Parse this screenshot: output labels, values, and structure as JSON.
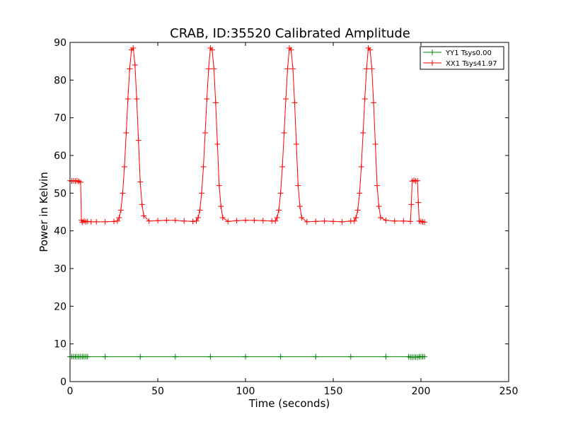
{
  "chart_data": {
    "type": "line",
    "title": "CRAB, ID:35520 Calibrated Amplitude",
    "xlabel": "Time (seconds)",
    "ylabel": "Power in Kelvin",
    "xlim": [
      0,
      250
    ],
    "ylim": [
      0,
      90
    ],
    "xticks": [
      0,
      50,
      100,
      150,
      200,
      250
    ],
    "yticks": [
      0,
      10,
      20,
      30,
      40,
      50,
      60,
      70,
      80,
      90
    ],
    "grid": false,
    "legend_position": "upper right",
    "series": [
      {
        "name": "YY1 Tsys0.00",
        "color": "#008000",
        "marker": "+",
        "x": [
          0,
          1,
          2,
          3,
          4,
          5,
          6,
          7,
          8,
          9,
          10,
          20,
          40,
          60,
          80,
          100,
          120,
          140,
          160,
          180,
          193,
          194,
          195,
          196,
          197,
          198,
          199,
          200,
          201,
          202
        ],
        "y": [
          6.6,
          6.6,
          6.6,
          6.6,
          6.6,
          6.6,
          6.6,
          6.6,
          6.6,
          6.6,
          6.6,
          6.6,
          6.6,
          6.6,
          6.6,
          6.6,
          6.6,
          6.6,
          6.6,
          6.6,
          6.6,
          6.5,
          6.5,
          6.5,
          6.5,
          6.5,
          6.6,
          6.6,
          6.6,
          6.6
        ]
      },
      {
        "name": "XX1 Tsys41.97",
        "color": "#ff0000",
        "marker": "+",
        "x": [
          0,
          1,
          2,
          3,
          4,
          5,
          6,
          6.5,
          7,
          8,
          9,
          10,
          12,
          15,
          20,
          25,
          27,
          28,
          29,
          30,
          31,
          32,
          33,
          34,
          35,
          36,
          37,
          38,
          39,
          40,
          41,
          42,
          45,
          50,
          55,
          60,
          65,
          70,
          72,
          73,
          74,
          75,
          76,
          77,
          78,
          79,
          80,
          81,
          82,
          83,
          84,
          85,
          86,
          87,
          90,
          95,
          100,
          105,
          110,
          115,
          117,
          118,
          119,
          120,
          121,
          122,
          123,
          124,
          125,
          126,
          127,
          128,
          129,
          130,
          131,
          132,
          135,
          140,
          145,
          150,
          155,
          160,
          162,
          163,
          164,
          165,
          166,
          167,
          168,
          169,
          170,
          171,
          172,
          173,
          174,
          175,
          176,
          177,
          180,
          185,
          190,
          194,
          194.5,
          195,
          196,
          197,
          198,
          198.5,
          199,
          200,
          201,
          202
        ],
        "y": [
          53.3,
          53.2,
          53.3,
          53.2,
          53.3,
          53.1,
          52.9,
          42.8,
          42.3,
          42.6,
          42.4,
          42.5,
          42.4,
          42.4,
          42.4,
          42.5,
          42.6,
          43.5,
          45.5,
          50.0,
          57.0,
          66.0,
          75.0,
          83.0,
          88.0,
          88.5,
          84.0,
          75.0,
          64.0,
          53.0,
          47.0,
          44.0,
          42.6,
          42.7,
          42.8,
          42.8,
          42.6,
          42.5,
          42.6,
          43.5,
          45.5,
          50.0,
          57.0,
          66.0,
          75.0,
          83.0,
          88.5,
          88.0,
          83.0,
          74.0,
          63.0,
          52.0,
          46.5,
          43.5,
          42.5,
          42.7,
          42.8,
          42.8,
          42.7,
          42.6,
          42.6,
          43.5,
          45.5,
          50.0,
          57.0,
          66.0,
          75.0,
          83.0,
          88.5,
          88.0,
          83.0,
          74.0,
          63.0,
          52.0,
          46.5,
          43.5,
          42.4,
          42.5,
          42.6,
          42.5,
          42.4,
          42.6,
          42.6,
          43.5,
          45.5,
          50.0,
          57.0,
          66.0,
          75.0,
          83.0,
          88.5,
          88.0,
          83.0,
          74.0,
          63.0,
          52.0,
          46.5,
          43.5,
          42.8,
          42.6,
          42.6,
          42.5,
          47.0,
          53.2,
          53.4,
          53.2,
          53.3,
          47.5,
          42.6,
          42.5,
          42.4,
          42.3
        ]
      }
    ]
  }
}
